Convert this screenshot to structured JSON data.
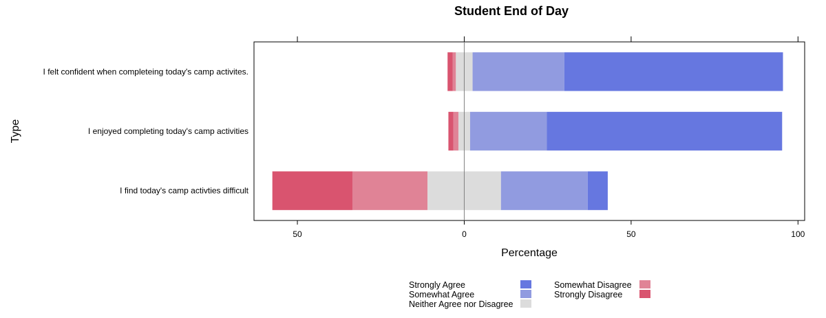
{
  "chart_data": {
    "type": "bar",
    "subtype": "diverging-stacked-horizontal",
    "title": "Student End of Day",
    "xlabel": "Percentage",
    "ylabel": "Type",
    "xlim": [
      -63,
      102
    ],
    "xticks": [
      {
        "value": -50,
        "label": "50"
      },
      {
        "value": 0,
        "label": "0"
      },
      {
        "value": 50,
        "label": "50"
      },
      {
        "value": 100,
        "label": "100"
      }
    ],
    "categories": [
      "I felt confident when completeing today's camp activites.",
      "I enjoyed completing today's camp activities",
      "I find today's camp activties difficult"
    ],
    "series": [
      {
        "name": "Strongly Disagree",
        "color": "#D9546F",
        "values": [
          1.5,
          1.5,
          24
        ]
      },
      {
        "name": "Somewhat Disagree",
        "color": "#E08396",
        "values": [
          1,
          1.5,
          22.5
        ]
      },
      {
        "name": "Neither Agree nor Disagree",
        "color": "#DCDCDC",
        "values": [
          5,
          3.5,
          22
        ]
      },
      {
        "name": "Somewhat Agree",
        "color": "#919BE0",
        "values": [
          27.5,
          23,
          26
        ]
      },
      {
        "name": "Strongly Agree",
        "color": "#6677E0",
        "values": [
          65.5,
          70.5,
          6
        ]
      }
    ],
    "legend_position": "bottom",
    "legend_columns": [
      [
        "Strongly Agree",
        "Somewhat Agree",
        "Neither Agree nor Disagree"
      ],
      [
        "Somewhat Disagree",
        "Strongly Disagree"
      ]
    ]
  }
}
